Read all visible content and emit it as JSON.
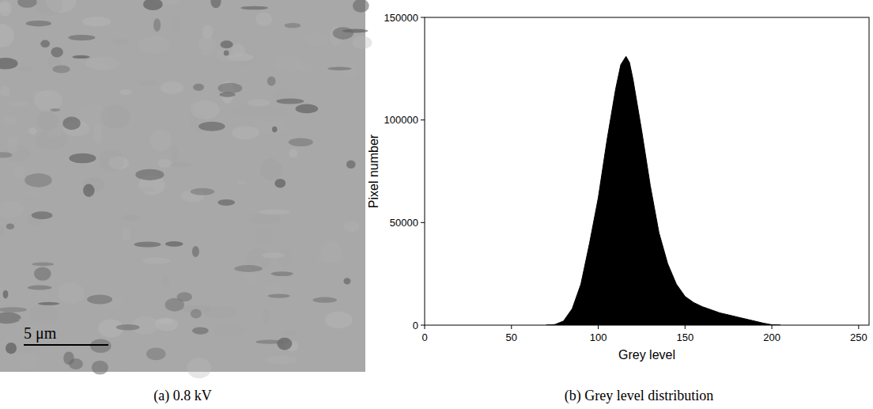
{
  "image": {
    "scale_bar": "5 μm",
    "caption": "(a) 0.8 kV"
  },
  "chart_data": {
    "type": "area",
    "caption": "(b) Grey level distribution",
    "x_label": "Grey level",
    "y_label": "Pixel number",
    "color": "#000000",
    "x": [
      70,
      75,
      80,
      85,
      90,
      95,
      100,
      105,
      110,
      113,
      116,
      118,
      120,
      125,
      130,
      135,
      140,
      145,
      150,
      155,
      160,
      165,
      170,
      175,
      180,
      185,
      190,
      195,
      200,
      205
    ],
    "values": [
      0,
      300,
      2000,
      8000,
      20000,
      40000,
      62000,
      90000,
      115000,
      127000,
      131000,
      128000,
      120000,
      95000,
      68000,
      45000,
      30000,
      20000,
      14000,
      11000,
      9000,
      7500,
      6000,
      5000,
      4000,
      3000,
      2000,
      1000,
      200,
      0
    ],
    "xlim": [
      0,
      256
    ],
    "xticks": [
      0,
      50,
      100,
      150,
      200,
      250
    ],
    "ylim": [
      0,
      150000
    ],
    "yticks": [
      0,
      50000,
      100000,
      150000
    ],
    "grid": false
  }
}
